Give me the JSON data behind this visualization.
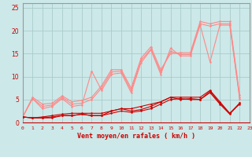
{
  "xlabel": "Vent moyen/en rafales ( km/h )",
  "bg_color": "#cce8e8",
  "grid_color": "#aacccc",
  "line_color_dark": "#cc0000",
  "line_color_light": "#ff8888",
  "line_color_mid": "#ffaaaa",
  "xlim": [
    0,
    23
  ],
  "ylim": [
    0,
    26
  ],
  "xticks": [
    0,
    1,
    2,
    3,
    4,
    5,
    6,
    7,
    8,
    9,
    10,
    11,
    12,
    13,
    14,
    15,
    16,
    17,
    18,
    19,
    20,
    21,
    22,
    23
  ],
  "yticks": [
    0,
    5,
    10,
    15,
    20,
    25
  ],
  "series_light": [
    {
      "x": [
        0,
        1,
        2,
        3,
        4,
        5,
        6,
        7,
        8,
        9,
        10,
        11,
        12,
        13,
        14,
        15,
        16,
        17,
        18,
        19,
        20,
        21,
        22
      ],
      "y": [
        1.2,
        5.2,
        3.0,
        3.5,
        5.2,
        3.5,
        3.8,
        11.2,
        7.0,
        10.5,
        10.8,
        6.5,
        13.0,
        15.8,
        10.5,
        16.2,
        14.5,
        14.5,
        21.2,
        13.2,
        21.2,
        21.2,
        5.2
      ]
    },
    {
      "x": [
        0,
        1,
        2,
        3,
        4,
        5,
        6,
        7,
        8,
        9,
        10,
        11,
        12,
        13,
        14,
        15,
        16,
        17,
        18,
        19,
        20,
        21,
        22
      ],
      "y": [
        1.2,
        5.2,
        3.5,
        3.8,
        5.5,
        4.0,
        4.2,
        5.0,
        7.5,
        11.0,
        11.2,
        7.0,
        13.5,
        16.0,
        11.0,
        15.5,
        14.8,
        14.8,
        21.5,
        21.0,
        21.5,
        21.5,
        5.5
      ]
    },
    {
      "x": [
        0,
        1,
        2,
        3,
        4,
        5,
        6,
        7,
        8,
        9,
        10,
        11,
        12,
        13,
        14,
        15,
        16,
        17,
        18,
        19,
        20,
        21,
        22
      ],
      "y": [
        1.2,
        5.5,
        4.0,
        4.2,
        5.8,
        4.5,
        4.8,
        5.5,
        8.0,
        11.5,
        11.5,
        7.5,
        14.0,
        16.5,
        11.5,
        15.0,
        15.2,
        15.2,
        22.0,
        21.5,
        22.0,
        22.0,
        6.0
      ]
    }
  ],
  "series_dark": [
    {
      "x": [
        0,
        1,
        2,
        3,
        4,
        5,
        6,
        7,
        8,
        9,
        10,
        11,
        12,
        13,
        14,
        15,
        16,
        17,
        18,
        19,
        20,
        21,
        22
      ],
      "y": [
        1.2,
        1.0,
        1.0,
        1.0,
        1.5,
        1.5,
        1.8,
        1.5,
        1.5,
        2.0,
        2.5,
        2.2,
        2.5,
        3.0,
        4.0,
        5.0,
        5.2,
        5.0,
        5.0,
        6.5,
        4.0,
        1.8,
        4.2
      ]
    },
    {
      "x": [
        0,
        1,
        2,
        3,
        4,
        5,
        6,
        7,
        8,
        9,
        10,
        11,
        12,
        13,
        14,
        15,
        16,
        17,
        18,
        19,
        20,
        21,
        22
      ],
      "y": [
        1.2,
        1.0,
        1.0,
        1.2,
        1.5,
        1.5,
        1.8,
        1.5,
        1.5,
        2.5,
        3.0,
        2.5,
        2.8,
        3.5,
        4.5,
        5.5,
        5.0,
        5.2,
        5.0,
        6.8,
        4.2,
        2.0,
        4.0
      ]
    },
    {
      "x": [
        0,
        1,
        2,
        3,
        4,
        5,
        6,
        7,
        8,
        9,
        10,
        11,
        12,
        13,
        14,
        15,
        16,
        17,
        18,
        19,
        20,
        21,
        22
      ],
      "y": [
        1.2,
        1.0,
        1.2,
        1.5,
        1.8,
        2.0,
        2.0,
        2.0,
        2.0,
        2.5,
        3.0,
        3.0,
        3.5,
        4.0,
        4.5,
        5.5,
        5.5,
        5.5,
        5.5,
        7.0,
        4.5,
        2.0,
        4.2
      ]
    }
  ]
}
